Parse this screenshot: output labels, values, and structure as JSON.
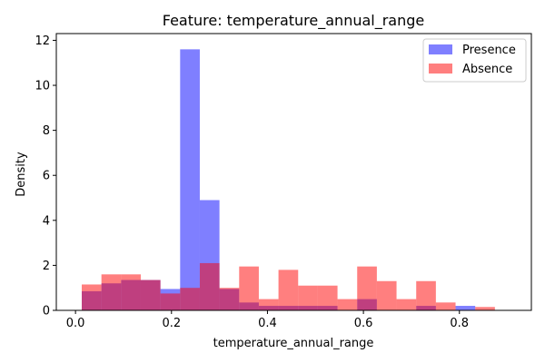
{
  "chart_data": {
    "type": "histogram",
    "title": "Feature: temperature_annual_range",
    "xlabel": "temperature_annual_range",
    "ylabel": "Density",
    "xlim": [
      -0.04,
      0.95
    ],
    "ylim": [
      0,
      12.3
    ],
    "xticks": [
      0.0,
      0.2,
      0.4,
      0.6,
      0.8
    ],
    "xtick_labels": [
      "0.0",
      "0.2",
      "0.4",
      "0.6",
      "0.8"
    ],
    "yticks": [
      0,
      2,
      4,
      6,
      8,
      10,
      12
    ],
    "ytick_labels": [
      "0",
      "2",
      "4",
      "6",
      "8",
      "10",
      "12"
    ],
    "legend_position": "top-right",
    "grid": false,
    "series": [
      {
        "name": "Presence",
        "color": "#0000ff",
        "opacity": 0.5,
        "bins": [
          [
            0.013,
            0.054,
            0.85
          ],
          [
            0.054,
            0.095,
            1.2
          ],
          [
            0.095,
            0.136,
            1.35
          ],
          [
            0.136,
            0.177,
            1.35
          ],
          [
            0.177,
            0.218,
            0.95
          ],
          [
            0.218,
            0.259,
            11.6
          ],
          [
            0.259,
            0.3,
            4.9
          ],
          [
            0.3,
            0.341,
            0.95
          ],
          [
            0.341,
            0.382,
            0.35
          ],
          [
            0.382,
            0.423,
            0.2
          ],
          [
            0.423,
            0.464,
            0.2
          ],
          [
            0.464,
            0.505,
            0.2
          ],
          [
            0.505,
            0.546,
            0.2
          ],
          [
            0.587,
            0.628,
            0.5
          ],
          [
            0.71,
            0.751,
            0.2
          ],
          [
            0.792,
            0.833,
            0.2
          ]
        ]
      },
      {
        "name": "Absence",
        "color": "#ff0000",
        "opacity": 0.5,
        "bins": [
          [
            0.013,
            0.054,
            1.15
          ],
          [
            0.054,
            0.095,
            1.6
          ],
          [
            0.095,
            0.136,
            1.6
          ],
          [
            0.136,
            0.177,
            1.35
          ],
          [
            0.177,
            0.218,
            0.75
          ],
          [
            0.218,
            0.259,
            1.0
          ],
          [
            0.259,
            0.3,
            2.1
          ],
          [
            0.3,
            0.341,
            1.0
          ],
          [
            0.341,
            0.382,
            1.95
          ],
          [
            0.382,
            0.423,
            0.5
          ],
          [
            0.423,
            0.464,
            1.8
          ],
          [
            0.464,
            0.505,
            1.1
          ],
          [
            0.505,
            0.546,
            1.1
          ],
          [
            0.546,
            0.587,
            0.5
          ],
          [
            0.587,
            0.628,
            1.95
          ],
          [
            0.628,
            0.669,
            1.3
          ],
          [
            0.669,
            0.71,
            0.5
          ],
          [
            0.71,
            0.751,
            1.3
          ],
          [
            0.751,
            0.792,
            0.35
          ],
          [
            0.833,
            0.874,
            0.15
          ]
        ]
      }
    ]
  }
}
